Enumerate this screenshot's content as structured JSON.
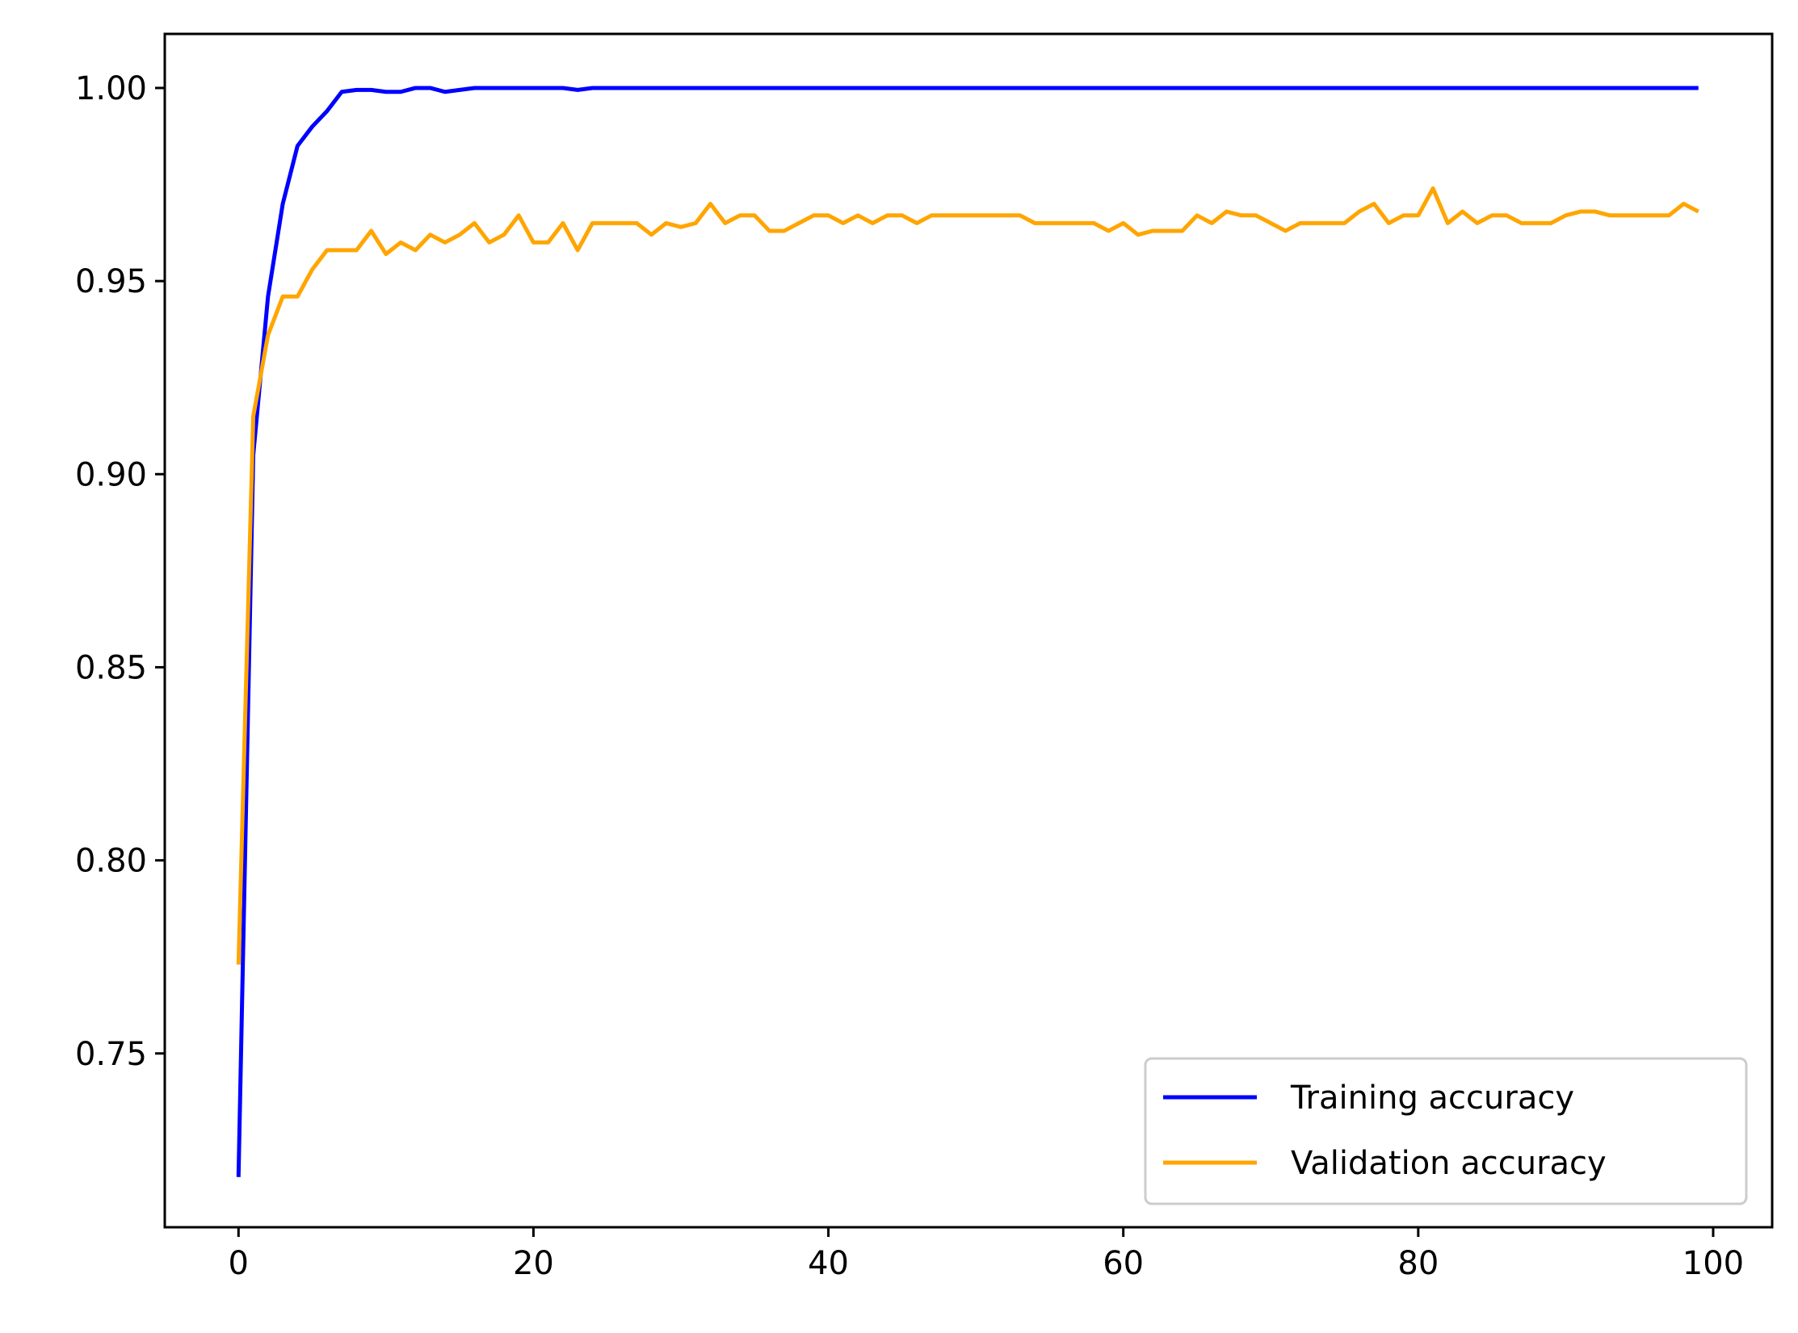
{
  "chart_data": {
    "type": "line",
    "title": "",
    "xlabel": "",
    "ylabel": "",
    "xlim": [
      -5,
      104
    ],
    "ylim": [
      0.705,
      1.014
    ],
    "xticks": [
      0,
      20,
      40,
      60,
      80,
      100
    ],
    "xtick_labels": [
      "0",
      "20",
      "40",
      "60",
      "80",
      "100"
    ],
    "yticks": [
      0.75,
      0.8,
      0.85,
      0.9,
      0.95,
      1.0
    ],
    "ytick_labels": [
      "0.75",
      "0.80",
      "0.85",
      "0.90",
      "0.95",
      "1.00"
    ],
    "grid": false,
    "legend_position": "lower-right",
    "x": [
      0,
      1,
      2,
      3,
      4,
      5,
      6,
      7,
      8,
      9,
      10,
      11,
      12,
      13,
      14,
      15,
      16,
      17,
      18,
      19,
      20,
      21,
      22,
      23,
      24,
      25,
      26,
      27,
      28,
      29,
      30,
      31,
      32,
      33,
      34,
      35,
      36,
      37,
      38,
      39,
      40,
      41,
      42,
      43,
      44,
      45,
      46,
      47,
      48,
      49,
      50,
      51,
      52,
      53,
      54,
      55,
      56,
      57,
      58,
      59,
      60,
      61,
      62,
      63,
      64,
      65,
      66,
      67,
      68,
      69,
      70,
      71,
      72,
      73,
      74,
      75,
      76,
      77,
      78,
      79,
      80,
      81,
      82,
      83,
      84,
      85,
      86,
      87,
      88,
      89,
      90,
      91,
      92,
      93,
      94,
      95,
      96,
      97,
      98,
      99
    ],
    "series": [
      {
        "name": "Training accuracy",
        "color": "#0000ff",
        "values": [
          0.718,
          0.905,
          0.946,
          0.97,
          0.985,
          0.99,
          0.994,
          0.999,
          0.9995,
          0.9995,
          0.999,
          0.999,
          1.0,
          1.0,
          0.999,
          0.9995,
          1.0,
          1.0,
          1.0,
          1.0,
          1.0,
          1.0,
          1.0,
          0.9995,
          1.0,
          1.0,
          1.0,
          1.0,
          1.0,
          1.0,
          1.0,
          1.0,
          1.0,
          1.0,
          1.0,
          1.0,
          1.0,
          1.0,
          1.0,
          1.0,
          1.0,
          1.0,
          1.0,
          1.0,
          1.0,
          1.0,
          1.0,
          1.0,
          1.0,
          1.0,
          1.0,
          1.0,
          1.0,
          1.0,
          1.0,
          1.0,
          1.0,
          1.0,
          1.0,
          1.0,
          1.0,
          1.0,
          1.0,
          1.0,
          1.0,
          1.0,
          1.0,
          1.0,
          1.0,
          1.0,
          1.0,
          1.0,
          1.0,
          1.0,
          1.0,
          1.0,
          1.0,
          1.0,
          1.0,
          1.0,
          1.0,
          1.0,
          1.0,
          1.0,
          1.0,
          1.0,
          1.0,
          1.0,
          1.0,
          1.0,
          1.0,
          1.0,
          1.0,
          1.0,
          1.0,
          1.0,
          1.0,
          1.0,
          1.0,
          1.0
        ]
      },
      {
        "name": "Validation accuracy",
        "color": "#ffa500",
        "values": [
          0.773,
          0.915,
          0.936,
          0.946,
          0.946,
          0.953,
          0.958,
          0.958,
          0.958,
          0.963,
          0.957,
          0.96,
          0.958,
          0.962,
          0.96,
          0.962,
          0.965,
          0.96,
          0.962,
          0.967,
          0.96,
          0.96,
          0.965,
          0.958,
          0.965,
          0.965,
          0.965,
          0.965,
          0.962,
          0.965,
          0.964,
          0.965,
          0.97,
          0.965,
          0.967,
          0.967,
          0.963,
          0.963,
          0.965,
          0.967,
          0.967,
          0.965,
          0.967,
          0.965,
          0.967,
          0.967,
          0.965,
          0.967,
          0.967,
          0.967,
          0.967,
          0.967,
          0.967,
          0.967,
          0.965,
          0.965,
          0.965,
          0.965,
          0.965,
          0.963,
          0.965,
          0.962,
          0.963,
          0.963,
          0.963,
          0.967,
          0.965,
          0.968,
          0.967,
          0.967,
          0.965,
          0.963,
          0.965,
          0.965,
          0.965,
          0.965,
          0.968,
          0.97,
          0.965,
          0.967,
          0.967,
          0.974,
          0.965,
          0.968,
          0.965,
          0.967,
          0.967,
          0.965,
          0.965,
          0.965,
          0.967,
          0.968,
          0.968,
          0.967,
          0.967,
          0.967,
          0.967,
          0.967,
          0.97,
          0.968
        ]
      }
    ]
  }
}
